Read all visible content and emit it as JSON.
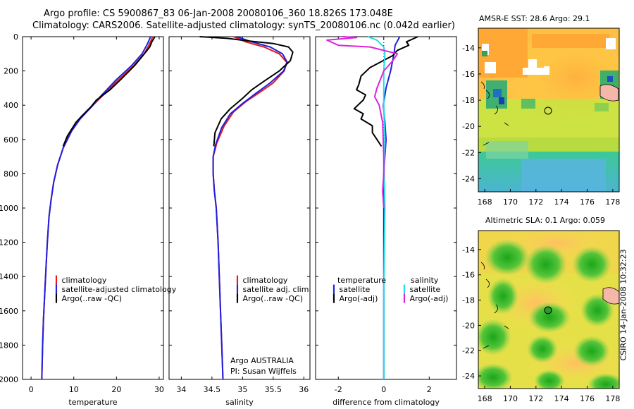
{
  "header": {
    "line1": "Argo profile: CS 5900867_83 06-Jan-2008 20080106_360 18.826S 173.048E",
    "line2": "Climatology: CARS2006. Satellite-adjusted climatology: synTS_20080106.nc (0.042d earlier)"
  },
  "credit": {
    "line1": "Argo AUSTRALIA",
    "line2": "PI: Susan Wijffels",
    "stamp": "CSIRO 14-Jan-2008 10:32:23"
  },
  "colors": {
    "clim": "#e41a1c",
    "sat": "#1f1fe0",
    "argo": "#000000",
    "salsat": "#22dde8",
    "salargo": "#e020e0"
  },
  "chart_data": [
    {
      "type": "line",
      "xlabel": "temperature",
      "xlim": [
        -2,
        31
      ],
      "xticks": [
        0,
        10,
        20,
        30
      ],
      "ylim": [
        2000,
        0
      ],
      "yticks": [
        0,
        200,
        400,
        600,
        800,
        1000,
        1200,
        1400,
        1600,
        1800,
        2000
      ],
      "legend": [
        "climatology",
        "satellite-adjusted climatology",
        "Argo(..raw -QC)"
      ],
      "series": [
        {
          "name": "climatology",
          "color": "clim",
          "points": [
            [
              28.5,
              0
            ],
            [
              27.8,
              40
            ],
            [
              26.5,
              100
            ],
            [
              24,
              170
            ],
            [
              20.5,
              250
            ],
            [
              16.5,
              350
            ],
            [
              14.5,
              400
            ],
            [
              11.5,
              480
            ],
            [
              9.5,
              550
            ],
            [
              7.5,
              650
            ],
            [
              6.2,
              750
            ],
            [
              5.3,
              850
            ],
            [
              4.7,
              950
            ],
            [
              4.2,
              1050
            ],
            [
              3.8,
              1200
            ],
            [
              3.5,
              1350
            ],
            [
              3.2,
              1500
            ],
            [
              2.9,
              1650
            ],
            [
              2.7,
              1800
            ],
            [
              2.5,
              2000
            ]
          ]
        },
        {
          "name": "satellite-adjusted climatology",
          "color": "sat",
          "points": [
            [
              28.0,
              0
            ],
            [
              27.3,
              40
            ],
            [
              26.0,
              100
            ],
            [
              23.5,
              170
            ],
            [
              20.0,
              250
            ],
            [
              16.2,
              350
            ],
            [
              14.5,
              400
            ],
            [
              11.5,
              480
            ],
            [
              9.5,
              550
            ],
            [
              7.5,
              650
            ],
            [
              6.2,
              750
            ],
            [
              5.3,
              850
            ],
            [
              4.7,
              950
            ],
            [
              4.2,
              1050
            ],
            [
              3.8,
              1200
            ],
            [
              3.5,
              1350
            ],
            [
              3.2,
              1500
            ],
            [
              2.9,
              1650
            ],
            [
              2.7,
              1800
            ],
            [
              2.5,
              2000
            ]
          ]
        },
        {
          "name": "Argo(..raw -QC)",
          "color": "argo",
          "points": [
            [
              29.0,
              0
            ],
            [
              28.3,
              30
            ],
            [
              27.8,
              60
            ],
            [
              26.2,
              110
            ],
            [
              24.2,
              170
            ],
            [
              21.0,
              250
            ],
            [
              18.5,
              310
            ],
            [
              15.3,
              370
            ],
            [
              14.0,
              410
            ],
            [
              12.0,
              460
            ],
            [
              10.5,
              500
            ],
            [
              8.5,
              580
            ],
            [
              7.5,
              640
            ]
          ]
        }
      ]
    },
    {
      "type": "line",
      "xlabel": "salinity",
      "xlim": [
        33.8,
        36.1
      ],
      "xticks": [
        34,
        34.5,
        35,
        35.5,
        36
      ],
      "ylim": [
        2000,
        0
      ],
      "yticks": [
        0,
        200,
        400,
        600,
        800,
        1000,
        1200,
        1400,
        1600,
        1800,
        2000
      ],
      "legend": [
        "climatology",
        "satellite adj. clim.",
        "Argo(..raw -QC)"
      ],
      "series": [
        {
          "name": "climatology",
          "color": "clim",
          "points": [
            [
              34.85,
              0
            ],
            [
              35.05,
              30
            ],
            [
              35.35,
              60
            ],
            [
              35.6,
              100
            ],
            [
              35.72,
              150
            ],
            [
              35.68,
              200
            ],
            [
              35.5,
              270
            ],
            [
              35.3,
              320
            ],
            [
              35.05,
              380
            ],
            [
              34.85,
              440
            ],
            [
              34.7,
              520
            ],
            [
              34.58,
              620
            ],
            [
              34.52,
              700
            ],
            [
              34.52,
              800
            ],
            [
              34.54,
              900
            ],
            [
              34.57,
              1000
            ],
            [
              34.6,
              1200
            ],
            [
              34.62,
              1400
            ],
            [
              34.64,
              1600
            ],
            [
              34.66,
              1800
            ],
            [
              34.68,
              2000
            ]
          ]
        },
        {
          "name": "satellite adj. clim.",
          "color": "sat",
          "points": [
            [
              34.9,
              0
            ],
            [
              35.15,
              30
            ],
            [
              35.45,
              60
            ],
            [
              35.65,
              100
            ],
            [
              35.73,
              150
            ],
            [
              35.67,
              200
            ],
            [
              35.45,
              270
            ],
            [
              35.22,
              330
            ],
            [
              35.0,
              390
            ],
            [
              34.8,
              450
            ],
            [
              34.66,
              530
            ],
            [
              34.56,
              630
            ],
            [
              34.52,
              700
            ],
            [
              34.52,
              800
            ],
            [
              34.54,
              900
            ],
            [
              34.57,
              1000
            ],
            [
              34.6,
              1200
            ],
            [
              34.62,
              1400
            ],
            [
              34.64,
              1600
            ],
            [
              34.66,
              1800
            ],
            [
              34.68,
              2000
            ]
          ]
        },
        {
          "name": "Argo(..raw -QC)",
          "color": "argo",
          "points": [
            [
              34.3,
              0
            ],
            [
              34.75,
              10
            ],
            [
              35.1,
              25
            ],
            [
              35.5,
              40
            ],
            [
              35.75,
              60
            ],
            [
              35.82,
              90
            ],
            [
              35.78,
              140
            ],
            [
              35.6,
              200
            ],
            [
              35.35,
              260
            ],
            [
              35.15,
              310
            ],
            [
              35.0,
              360
            ],
            [
              34.8,
              420
            ],
            [
              34.65,
              480
            ],
            [
              34.55,
              560
            ],
            [
              34.53,
              640
            ]
          ]
        }
      ]
    },
    {
      "type": "line",
      "xlabel": "difference from climatology",
      "xlim": [
        -3,
        3.2
      ],
      "xticks": [
        -2,
        0,
        2
      ],
      "ylim": [
        2000,
        0
      ],
      "yticks": [
        0,
        200,
        400,
        600,
        800,
        1000,
        1200,
        1400,
        1600,
        1800,
        2000
      ],
      "legend_temp": [
        "temperature",
        "satellite",
        "Argo(-adj)"
      ],
      "legend_sal": [
        "salinity",
        "satellite",
        "Argo(-adj)"
      ],
      "series": [
        {
          "name": "temperature satellite",
          "color": "sat",
          "points": [
            [
              0.7,
              0
            ],
            [
              0.5,
              50
            ],
            [
              0.45,
              100
            ],
            [
              0.3,
              200
            ],
            [
              0.1,
              300
            ],
            [
              -0.02,
              400
            ],
            [
              0.05,
              500
            ],
            [
              0.1,
              600
            ],
            [
              0.05,
              700
            ],
            [
              0.0,
              800
            ],
            [
              0.0,
              1000
            ],
            [
              0.0,
              1500
            ],
            [
              0.0,
              2000
            ]
          ]
        },
        {
          "name": "temperature Argo(-adj)",
          "color": "argo",
          "points": [
            [
              1.5,
              0
            ],
            [
              1.0,
              30
            ],
            [
              1.1,
              50
            ],
            [
              0.6,
              80
            ],
            [
              0.4,
              110
            ],
            [
              -0.6,
              180
            ],
            [
              -1.0,
              230
            ],
            [
              -1.1,
              280
            ],
            [
              -1.2,
              310
            ],
            [
              -0.8,
              340
            ],
            [
              -0.9,
              370
            ],
            [
              -1.3,
              420
            ],
            [
              -0.9,
              450
            ],
            [
              -1.0,
              480
            ],
            [
              -0.5,
              520
            ],
            [
              -0.5,
              560
            ],
            [
              -0.3,
              600
            ],
            [
              -0.1,
              640
            ]
          ]
        },
        {
          "name": "salinity satellite",
          "color": "salsat",
          "points": [
            [
              -0.7,
              0
            ],
            [
              -0.3,
              20
            ],
            [
              0.0,
              60
            ],
            [
              0.05,
              100
            ],
            [
              0.0,
              200
            ],
            [
              0.0,
              400
            ],
            [
              0.05,
              600
            ],
            [
              0.02,
              800
            ],
            [
              0.05,
              1000
            ],
            [
              0.0,
              1500
            ],
            [
              0.0,
              2000
            ]
          ]
        },
        {
          "name": "salinity Argo(-adj)",
          "color": "salargo",
          "points": [
            [
              -1.8,
              0
            ],
            [
              -1.2,
              5
            ],
            [
              -2.5,
              20
            ],
            [
              -2.0,
              50
            ],
            [
              -0.6,
              60
            ],
            [
              0.6,
              100
            ],
            [
              0.4,
              140
            ],
            [
              0.0,
              200
            ],
            [
              -0.3,
              300
            ],
            [
              -0.4,
              350
            ],
            [
              -0.2,
              400
            ],
            [
              -0.05,
              500
            ],
            [
              0.0,
              700
            ],
            [
              0.0,
              800
            ],
            [
              -0.05,
              900
            ],
            [
              0.0,
              1000
            ]
          ]
        }
      ]
    },
    {
      "type": "heatmap",
      "title": "AMSR-E SST: 28.6 Argo: 29.1",
      "xticks": [
        168,
        170,
        172,
        174,
        176,
        178
      ],
      "yticks": [
        -14,
        -16,
        -18,
        -20,
        -22,
        -24
      ],
      "xlim": [
        167.5,
        178.5
      ],
      "ylim": [
        -25,
        -12.5
      ],
      "marker": {
        "lon": 173.048,
        "lat": -18.826
      }
    },
    {
      "type": "heatmap",
      "title": "Altimetric SLA: 0.1 Argo: 0.059",
      "xticks": [
        168,
        170,
        172,
        174,
        176,
        178
      ],
      "yticks": [
        -14,
        -16,
        -18,
        -20,
        -22,
        -24
      ],
      "xlim": [
        167.5,
        178.5
      ],
      "ylim": [
        -25,
        -12.5
      ],
      "marker": {
        "lon": 173.048,
        "lat": -18.826
      }
    }
  ]
}
